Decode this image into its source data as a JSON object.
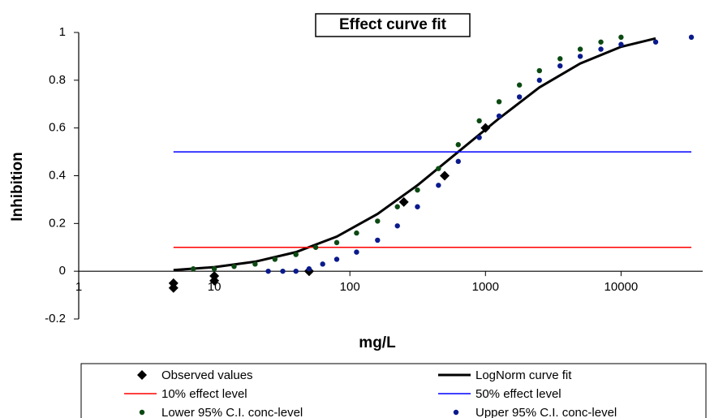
{
  "chart_data": {
    "type": "scatter",
    "title": "Effect curve fit",
    "x_label": "mg/L",
    "y_label": "Inhibition",
    "x_scale": "log",
    "xlim": [
      1,
      40000
    ],
    "xticks": [
      1,
      10,
      100,
      1000,
      10000
    ],
    "ylim": [
      -0.2,
      1
    ],
    "yticks": [
      -0.2,
      0,
      0.2,
      0.4,
      0.6,
      0.8,
      1
    ],
    "grid": false,
    "legend": "bottom",
    "series": [
      {
        "name": "Observed values",
        "color": "#000000",
        "marker": "diamond",
        "x": [
          5,
          5,
          10,
          10,
          50,
          50,
          250,
          500,
          1000
        ],
        "values": [
          -0.05,
          -0.07,
          -0.02,
          -0.04,
          0,
          0,
          0.29,
          0.4,
          0.6
        ]
      },
      {
        "name": "LogNorm curve fit",
        "color": "#000000",
        "marker": "line",
        "x": [
          5,
          10,
          20,
          40,
          80,
          160,
          315,
          630,
          1260,
          2500,
          5000,
          10000,
          18000
        ],
        "values": [
          0.005,
          0.017,
          0.04,
          0.08,
          0.145,
          0.24,
          0.36,
          0.5,
          0.64,
          0.77,
          0.87,
          0.94,
          0.975
        ]
      },
      {
        "name": "10% effect level",
        "color": "#ff0000",
        "marker": "line",
        "x": [
          5,
          33000
        ],
        "values": [
          0.1,
          0.1
        ]
      },
      {
        "name": "50% effect level",
        "color": "#0000ff",
        "marker": "line",
        "x": [
          5,
          33000
        ],
        "values": [
          0.5,
          0.5
        ]
      },
      {
        "name": "Lower 95% C.I. conc-level",
        "color": "#0b4a12",
        "marker": "circle",
        "x": [
          7,
          10,
          14,
          20,
          28,
          40,
          56,
          80,
          112,
          160,
          224,
          315,
          450,
          630,
          900,
          1260,
          1780,
          2500,
          3550,
          5000,
          7100,
          10000
        ],
        "values": [
          0.01,
          0.01,
          0.02,
          0.03,
          0.05,
          0.07,
          0.1,
          0.12,
          0.16,
          0.21,
          0.27,
          0.34,
          0.43,
          0.53,
          0.63,
          0.71,
          0.78,
          0.84,
          0.89,
          0.93,
          0.96,
          0.98
        ]
      },
      {
        "name": "Upper 95% C.I. conc-level",
        "color": "#0a1a8c",
        "marker": "circle",
        "x": [
          25,
          32,
          40,
          50,
          63,
          80,
          112,
          160,
          224,
          315,
          450,
          630,
          900,
          1260,
          1780,
          2500,
          3550,
          5000,
          7100,
          10000,
          18000,
          33000
        ],
        "values": [
          0,
          0,
          0,
          0.01,
          0.03,
          0.05,
          0.08,
          0.13,
          0.19,
          0.27,
          0.36,
          0.46,
          0.56,
          0.65,
          0.73,
          0.8,
          0.86,
          0.9,
          0.93,
          0.95,
          0.96,
          0.98
        ]
      }
    ]
  }
}
